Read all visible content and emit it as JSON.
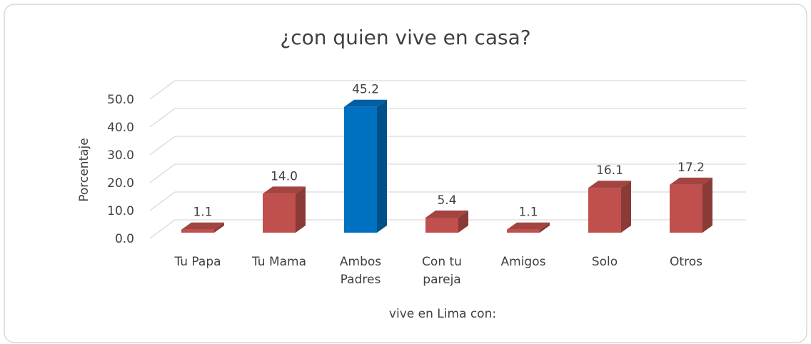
{
  "chart_data": {
    "type": "bar3d",
    "title": "¿con quien vive en casa?",
    "x_label": "vive en Lima con:",
    "y_label": "Porcentaje",
    "categories": [
      "Tu Papa",
      "Tu Mama",
      "Ambos Padres",
      "Con tu pareja",
      "Amigos",
      "Solo",
      "Otros"
    ],
    "values": [
      1.1,
      14.0,
      45.2,
      5.4,
      1.1,
      16.1,
      17.2
    ],
    "value_labels": [
      "1.1",
      "14.0",
      "45.2",
      "5.4",
      "1.1",
      "16.1",
      "17.2"
    ],
    "colors": [
      "#c0504d",
      "#c0504d",
      "#0070c0",
      "#c0504d",
      "#c0504d",
      "#c0504d",
      "#c0504d"
    ],
    "ylim": [
      0,
      50
    ],
    "yticks": [
      {
        "value": 0,
        "label": "0.0"
      },
      {
        "value": 10,
        "label": "10.0"
      },
      {
        "value": 20,
        "label": "20.0"
      },
      {
        "value": 30,
        "label": "30.0"
      },
      {
        "value": 40,
        "label": "40.0"
      },
      {
        "value": 50,
        "label": "50.0"
      }
    ],
    "grid": true
  }
}
